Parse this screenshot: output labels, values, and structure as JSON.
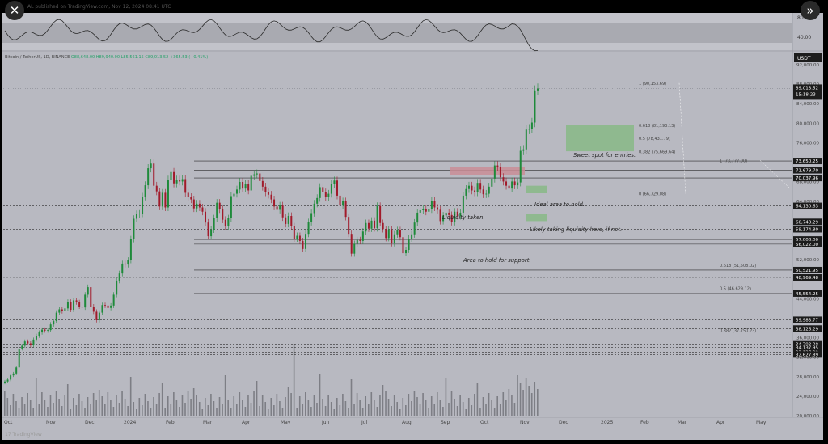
{
  "header": {
    "publisher": "AL published on TradingView.com, Nov 12, 2024 08:41 UTC",
    "close_icon": "close-icon",
    "next_icon": "double-chevron-right-icon"
  },
  "symbol": {
    "name": "Bitcoin / TetherUS, 1D, BINANCE",
    "ohlc": "O88,648.00  H89,940.00  L85,561.15  C89,013.52  +365.53 (+0.41%)"
  },
  "footer": {
    "logo": "17 TradingView"
  },
  "colors": {
    "background": "#b8b9c1",
    "up": "#1e8a3a",
    "down": "#a11a2a",
    "volume": "#6e6f76",
    "level_line": "#2c2c2c",
    "green_zone": "#8fb98f",
    "red_zone": "#c98d96",
    "rsi": "#2a2a2a",
    "rsi_band": "#a9aab1",
    "panel": "#c2c3ca"
  },
  "chart_data": {
    "type": "candlestick",
    "price_axis": {
      "currency_tag": "USDT",
      "ticks": [
        "92,000.00",
        "88,000.00",
        "84,000.00",
        "80,000.00",
        "76,000.00",
        "72,000.00",
        "68,000.00",
        "64,000.00",
        "60,000.00",
        "56,000.00",
        "52,000.00",
        "48,000.00",
        "44,000.00",
        "40,000.00",
        "36,000.00",
        "32,000.00",
        "28,000.00",
        "24,000.00",
        "20,000.00"
      ],
      "last_price": "89,013.52",
      "countdown": "15:18:23",
      "level_labels": [
        "73,650.25",
        "71,679.70",
        "70,037.96",
        "64,130.63",
        "60,748.29",
        "59,174.80",
        "57,008.00",
        "56,022.00",
        "50,521.95",
        "48,969.48",
        "45,554.25",
        "39,983.77",
        "38,126.29",
        "34,793.20",
        "34,137.95",
        "33,127.39",
        "32,627.89"
      ]
    },
    "rsi_axis": {
      "ticks": [
        "80.00",
        "40.00"
      ]
    },
    "time_axis": [
      "Oct",
      "Nov",
      "Dec",
      "2024",
      "Feb",
      "Mar",
      "Apr",
      "May",
      "Jun",
      "Jul",
      "Aug",
      "Sep",
      "Oct",
      "Nov",
      "Dec",
      "2025",
      "Feb",
      "Mar",
      "Apr",
      "May"
    ],
    "fib_upper": [
      {
        "label": "1 (90,153.69)",
        "price": 90153.69
      },
      {
        "label": "0.618 (81,193.13)",
        "price": 81193.13
      },
      {
        "label": "0.5 (78,431.79)",
        "price": 78431.79
      },
      {
        "label": "0.382 (75,669.64)",
        "price": 75669.64
      },
      {
        "label": "0 (66,729.08)",
        "price": 66729.08
      }
    ],
    "fib_lower": [
      {
        "label": "1 (73,777.00)",
        "price": 73777.0
      },
      {
        "label": "0.618 (51,508.02)",
        "price": 51508.02
      },
      {
        "label": "0.5 (46,629.12)",
        "price": 46629.12
      },
      {
        "label": "0.382 (37,750.23)",
        "price": 37750.23
      }
    ],
    "annotations": [
      "Sweet spot for entries.",
      "Ideal area to hold.",
      "Liquidity taken.",
      "Likely taking liquidity here, if not.",
      "Area to hold for support."
    ],
    "series": [
      {
        "name": "Close",
        "values": [
          26900,
          27300,
          28200,
          28600,
          29900,
          33900,
          34500,
          35400,
          35000,
          34600,
          35800,
          36600,
          37300,
          37900,
          37700,
          37800,
          39000,
          39700,
          41500,
          42200,
          41800,
          42400,
          43800,
          42100,
          44100,
          43700,
          42800,
          42600,
          45300,
          46900,
          42800,
          41700,
          39900,
          41500,
          43100,
          43000,
          42500,
          43000,
          45300,
          48300,
          49800,
          51900,
          51700,
          52600,
          57100,
          61400,
          62400,
          62500,
          66100,
          68500,
          72100,
          73100,
          68400,
          67200,
          64000,
          66900,
          63800,
          69700,
          71300,
          68900,
          69700,
          69300,
          69800,
          66900,
          66000,
          65500,
          63600,
          64600,
          63800,
          62900,
          60600,
          57700,
          59100,
          61500,
          64800,
          63400,
          61200,
          59800,
          61500,
          66200,
          66700,
          67600,
          69200,
          67800,
          68800,
          67400,
          70500,
          70800,
          71000,
          69400,
          68200,
          67000,
          66500,
          65500,
          64000,
          63300,
          64200,
          61700,
          60300,
          62000,
          59800,
          57200,
          57800,
          56700,
          55000,
          58200,
          60700,
          62600,
          64600,
          65800,
          68100,
          67000,
          66000,
          66700,
          68800,
          69500,
          66300,
          64200,
          65100,
          61800,
          58200,
          54000,
          56100,
          56900,
          56700,
          58700,
          60500,
          59300,
          61000,
          59400,
          64100,
          60500,
          59200,
          57300,
          59100,
          56200,
          58100,
          59000,
          57500,
          54100,
          54800,
          57200,
          58100,
          60600,
          62700,
          63200,
          63500,
          62900,
          63400,
          65200,
          63800,
          63300,
          60900,
          62100,
          62700,
          62200,
          60700,
          62900,
          62000,
          62700,
          66300,
          67700,
          68400,
          67400,
          67000,
          69000,
          67600,
          66600,
          66700,
          68200,
          69900,
          72700,
          72400,
          70200,
          69300,
          68400,
          67800,
          69300,
          68500,
          69100,
          75800,
          76100,
          80300,
          80500,
          81800,
          88600,
          89013.52
        ],
        "color": "#1e8a3a"
      }
    ]
  }
}
